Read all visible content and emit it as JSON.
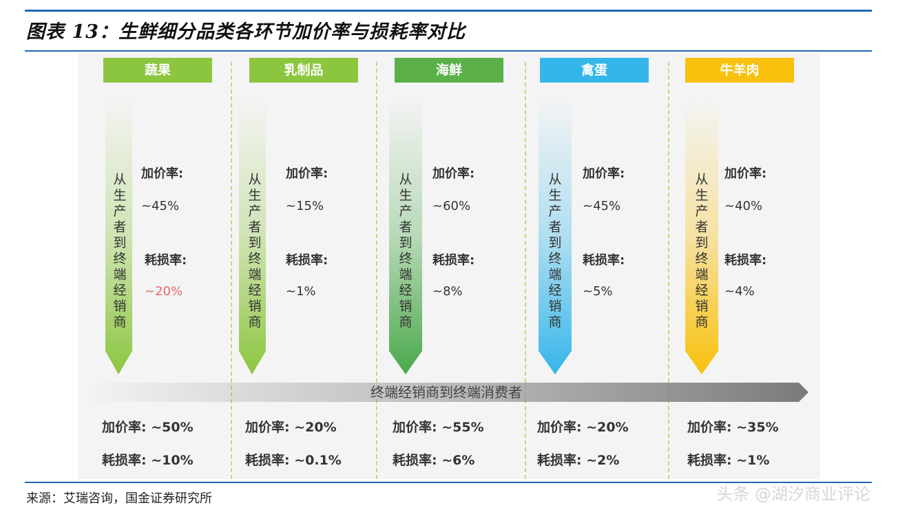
{
  "title": "图表 13：生鲜细分品类各环节加价率与损耗率对比",
  "vertical_label": "从生产者到终端经销商",
  "markup_label": "加价率:",
  "loss_label": "耗损率:",
  "banner": "终端经销商到终端消费者",
  "categories": [
    {
      "name": "蔬果",
      "color": "#8cc63f",
      "markup": "~45%",
      "loss": "~20%",
      "loss_highlight": true,
      "bottom_markup": "加价率: ~50%",
      "bottom_loss": "耗损率: ~10%"
    },
    {
      "name": "乳制品",
      "color": "#8cc63f",
      "markup": "~15%",
      "loss": "~1%",
      "loss_highlight": false,
      "bottom_markup": "加价率: ~20%",
      "bottom_loss": "耗损率: ~0.1%"
    },
    {
      "name": "海鲜",
      "color": "#5bb04a",
      "markup": "~60%",
      "loss": "~8%",
      "loss_highlight": false,
      "bottom_markup": "加价率: ~55%",
      "bottom_loss": "耗损率: ~6%"
    },
    {
      "name": "禽蛋",
      "color": "#35b6ea",
      "markup": "~45%",
      "loss": "~5%",
      "loss_highlight": false,
      "bottom_markup": "加价率: ~20%",
      "bottom_loss": "耗损率: ~2%"
    },
    {
      "name": "牛羊肉",
      "color": "#f9c10d",
      "markup": "~40%",
      "loss": "~4%",
      "loss_highlight": false,
      "bottom_markup": "加价率: ~35%",
      "bottom_loss": "耗损率: ~1%"
    }
  ],
  "source": "来源：艾瑞咨询，国金证券研究所",
  "watermark": "头条 @湖汐商业评论"
}
